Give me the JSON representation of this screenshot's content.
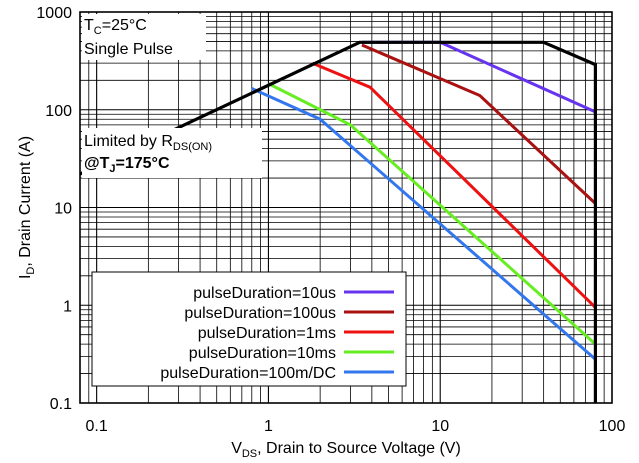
{
  "chart_data": {
    "type": "line",
    "title": "",
    "xlabel": {
      "main": "V",
      "sub": "DS",
      "rest": ", Drain to Source Voltage (V)"
    },
    "ylabel": {
      "main": "I",
      "sub": "D",
      "rest": ", Drain Current (A)"
    },
    "xscale": "log",
    "yscale": "log",
    "xlim": [
      0.08,
      100
    ],
    "ylim": [
      0.1,
      1000
    ],
    "grid": true,
    "x_ticks": [
      {
        "value": 0.1,
        "label": "0.1"
      },
      {
        "value": 1,
        "label": "1"
      },
      {
        "value": 10,
        "label": "10"
      },
      {
        "value": 100,
        "label": "100"
      }
    ],
    "y_ticks": [
      {
        "value": 0.1,
        "label": "0.1"
      },
      {
        "value": 1,
        "label": "1"
      },
      {
        "value": 10,
        "label": "10"
      },
      {
        "value": 100,
        "label": "100"
      },
      {
        "value": 1000,
        "label": "1000"
      }
    ],
    "annotations": {
      "tc": {
        "main": "T",
        "sub": "C",
        "rest": "=25°C"
      },
      "pulse": "Single Pulse",
      "limited": {
        "main": "Limited by R",
        "sub": "DS(ON)"
      },
      "tj": {
        "main": "@T",
        "sub": "J",
        "rest": "=175°C"
      }
    },
    "legend_position": "bottom-left",
    "boundary": {
      "name": "",
      "color": "#000000",
      "x": [
        0.08,
        3.4,
        40,
        80,
        80
      ],
      "y": [
        22,
        490,
        490,
        290,
        0.1
      ]
    },
    "series": [
      {
        "name": "pulseDuration=10us",
        "color": "#6633ee",
        "x": [
          3.5,
          10,
          80
        ],
        "y": [
          490,
          490,
          95
        ]
      },
      {
        "name": "pulseDuration=100us",
        "color": "#aa1111",
        "x": [
          3.5,
          17,
          80
        ],
        "y": [
          460,
          140,
          11
        ]
      },
      {
        "name": "pulseDuration=1ms",
        "color": "#ee1111",
        "x": [
          1.8,
          3.9,
          80
        ],
        "y": [
          300,
          170,
          0.95
        ]
      },
      {
        "name": "pulseDuration=10ms",
        "color": "#66ee22",
        "x": [
          1.0,
          3.0,
          80
        ],
        "y": [
          185,
          70,
          0.4
        ]
      },
      {
        "name": "pulseDuration=100m/DC",
        "color": "#3377ee",
        "x": [
          0.8,
          2.0,
          80
        ],
        "y": [
          165,
          80,
          0.28
        ]
      }
    ]
  }
}
